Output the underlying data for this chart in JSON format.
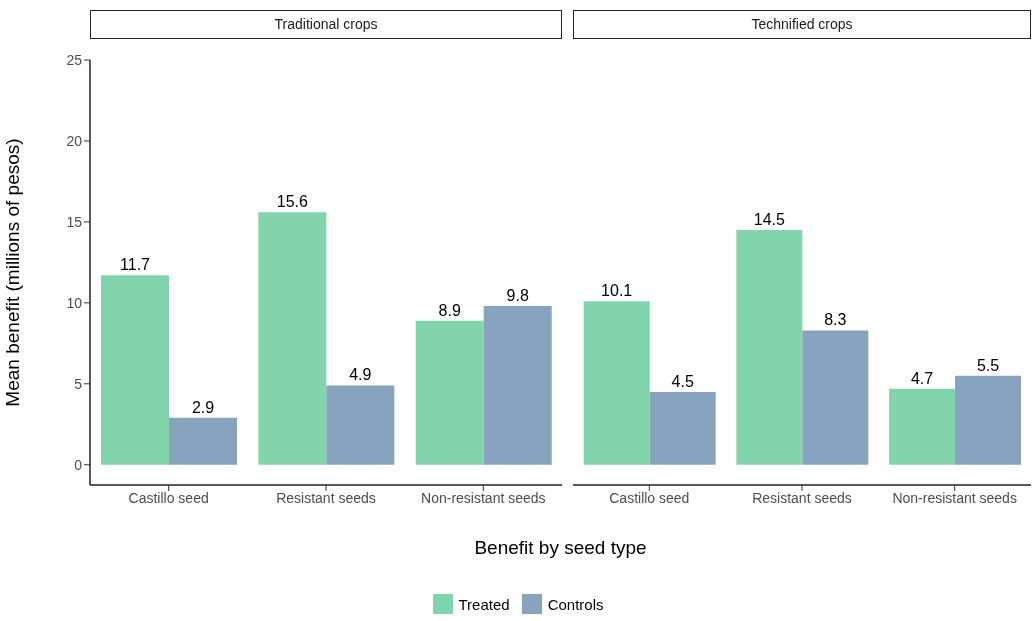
{
  "chart_data": [
    {
      "type": "bar",
      "title": "Traditional crops",
      "xlabel": "Benefit by seed type",
      "ylabel": "Mean benefit (millions of pesos)",
      "categories": [
        "Castillo seed",
        "Resistant seeds",
        "Non-resistant seeds"
      ],
      "series": [
        {
          "name": "Treated",
          "color": "#82d4ad",
          "values": [
            11.7,
            15.6,
            8.9
          ]
        },
        {
          "name": "Controls",
          "color": "#87a3bd",
          "values": [
            2.9,
            4.9,
            9.8
          ]
        }
      ],
      "ylim": [
        -1.25,
        25
      ],
      "yticks": [
        0,
        5,
        10,
        15,
        20,
        25
      ],
      "grid": false,
      "legend": "bottom",
      "data_labels": true
    },
    {
      "type": "bar",
      "title": "Technified crops",
      "categories": [
        "Castillo seed",
        "Resistant seeds",
        "Non-resistant seeds"
      ],
      "series": [
        {
          "color": "#82d4ad",
          "values": [
            10.1,
            14.5,
            4.7
          ]
        },
        {
          "color": "#87a3bd",
          "values": [
            4.5,
            8.3,
            5.5
          ]
        }
      ],
      "ylim": [
        -1.25,
        25
      ],
      "yticks": [
        0,
        5,
        10,
        15,
        20,
        25
      ],
      "grid": false,
      "tick_labels": "x",
      "data_labels": true
    }
  ]
}
